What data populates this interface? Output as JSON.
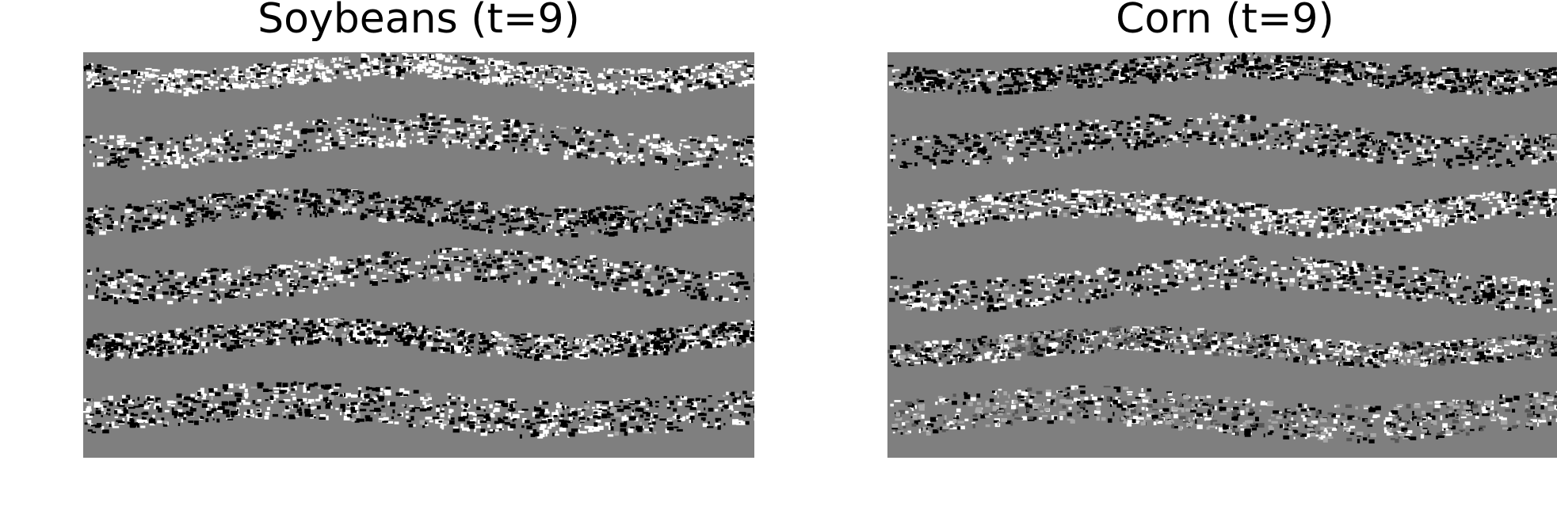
{
  "panels": [
    {
      "title": "Soybeans (t=9)"
    },
    {
      "title": "Corn (t=9)"
    }
  ],
  "colors": {
    "background": "#7f7f7f",
    "highlight": "#ffffff",
    "shadow": "#000000",
    "mid_dark": "#555555",
    "mid_light": "#a8a8a8"
  }
}
